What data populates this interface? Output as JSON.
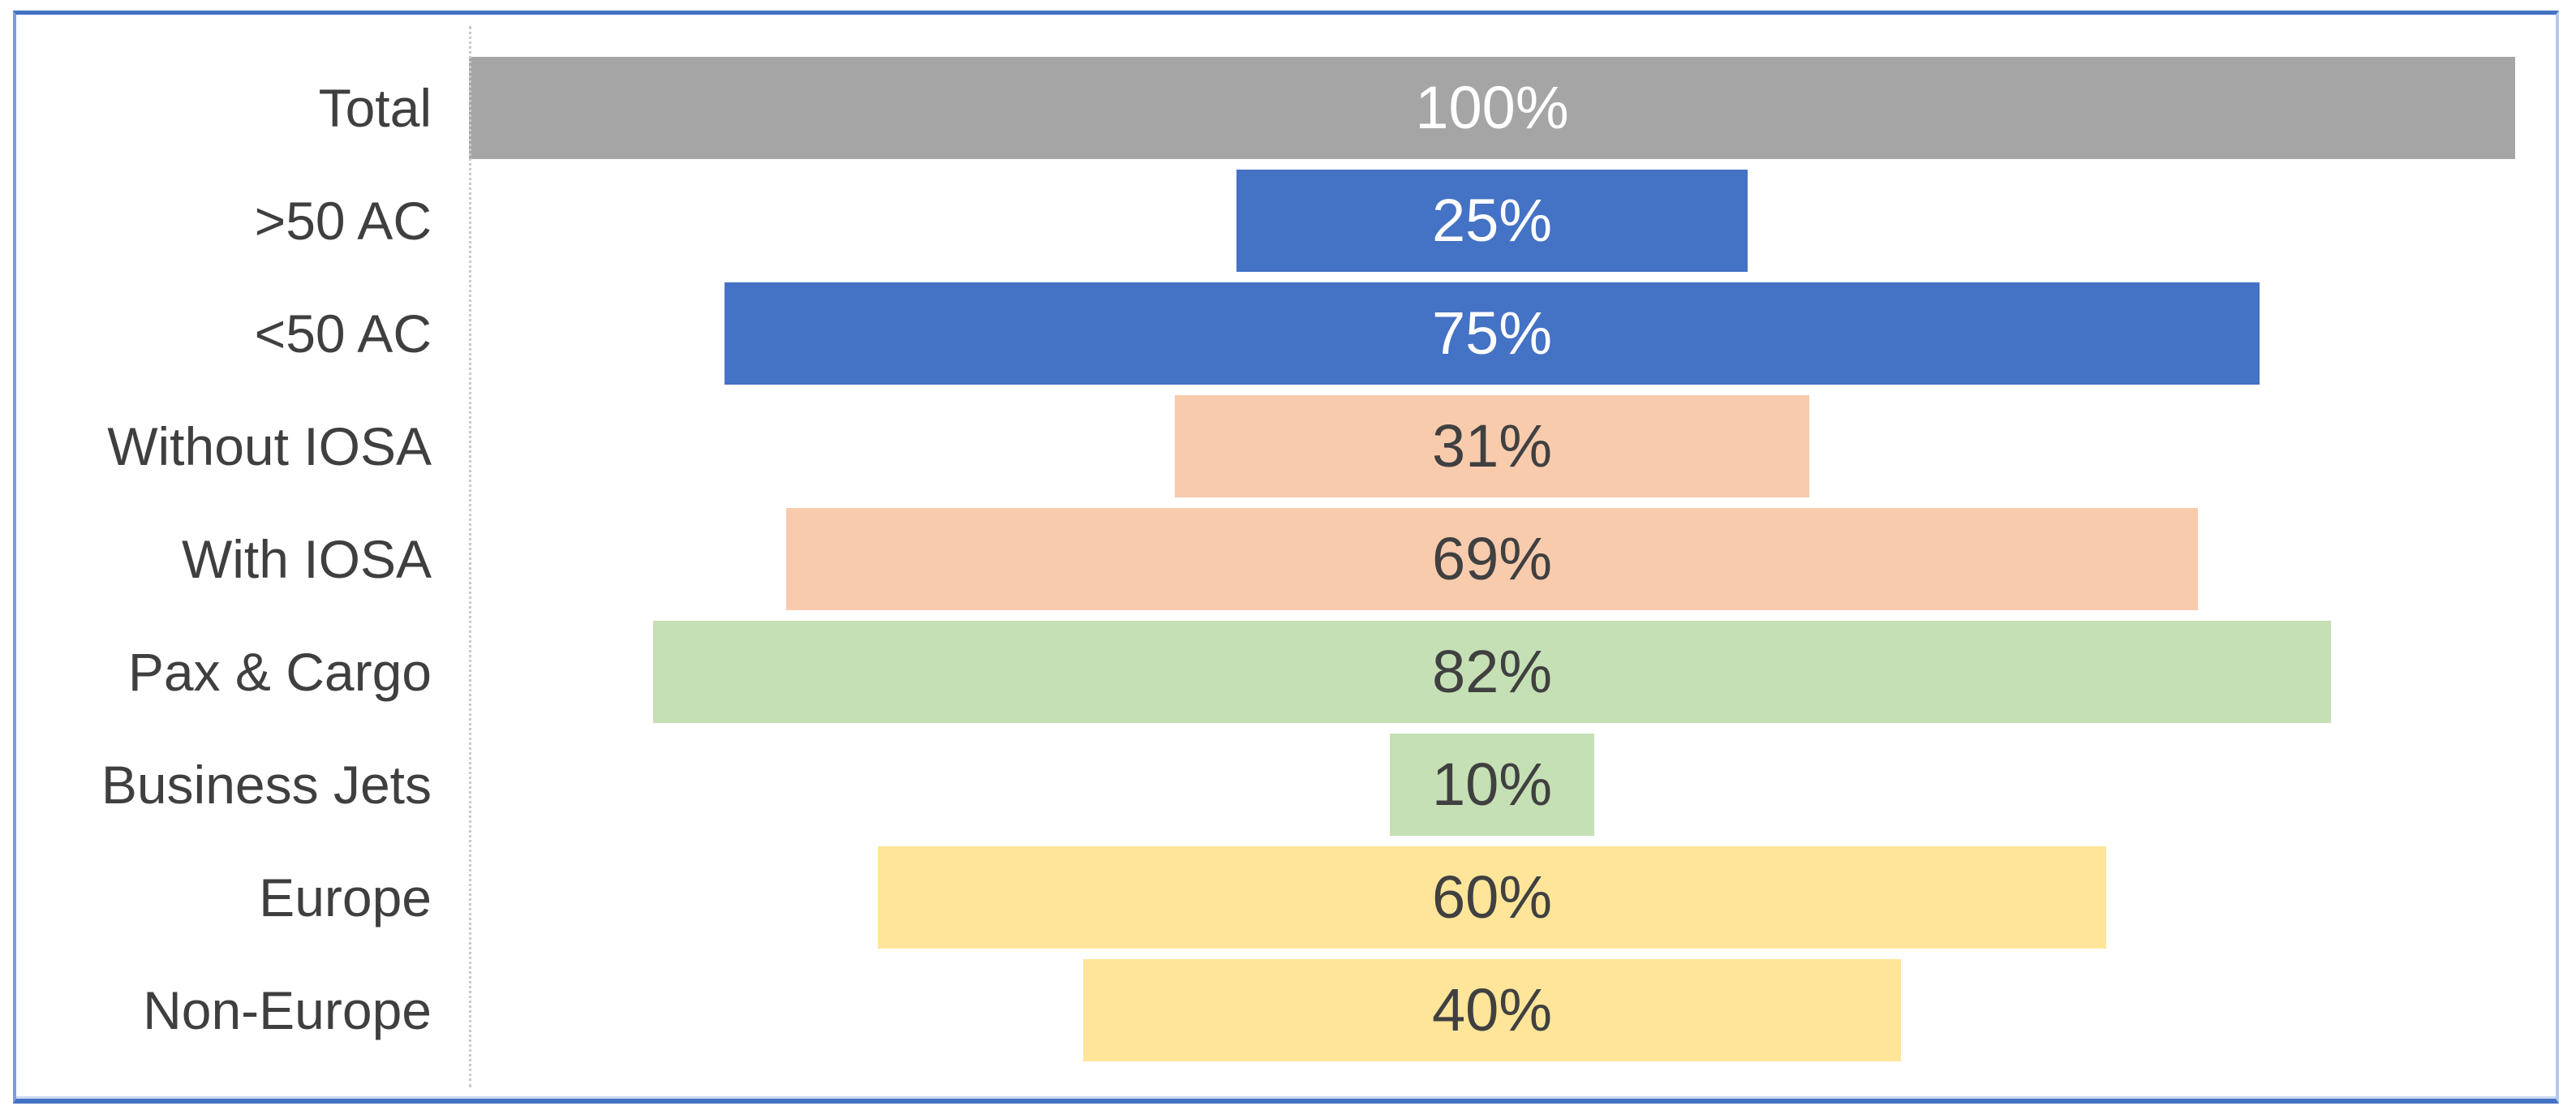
{
  "chart_data": {
    "type": "bar",
    "variant": "horizontal-centered-funnel",
    "title": "",
    "xlabel": "",
    "ylabel": "",
    "categories": [
      "Total",
      ">50 AC",
      "<50 AC",
      "Without IOSA",
      "With IOSA",
      "Pax & Cargo",
      "Business Jets",
      "Europe",
      "Non-Europe"
    ],
    "values": [
      100,
      25,
      75,
      31,
      69,
      82,
      10,
      60,
      40
    ],
    "value_labels": [
      "100%",
      "25%",
      "75%",
      "31%",
      "69%",
      "82%",
      "10%",
      "60%",
      "40%"
    ],
    "bar_colors": [
      "#a5a5a5",
      "#4472c4",
      "#4472c4",
      "#f8cbad",
      "#f8cbad",
      "#c5e0b4",
      "#c5e0b4",
      "#ffe599",
      "#ffe599"
    ],
    "label_colors": [
      "#ffffff",
      "#ffffff",
      "#ffffff",
      "#404040",
      "#404040",
      "#404040",
      "#404040",
      "#404040",
      "#404040"
    ],
    "xlim": [
      0,
      100
    ],
    "bar_alignment": "center",
    "gridlines": "off",
    "legend_position": "none",
    "category_axis_line": "dotted-light-gray",
    "data_label_position": "center"
  },
  "frame": {
    "border_color": "#4472c4",
    "background": "#ffffff"
  }
}
